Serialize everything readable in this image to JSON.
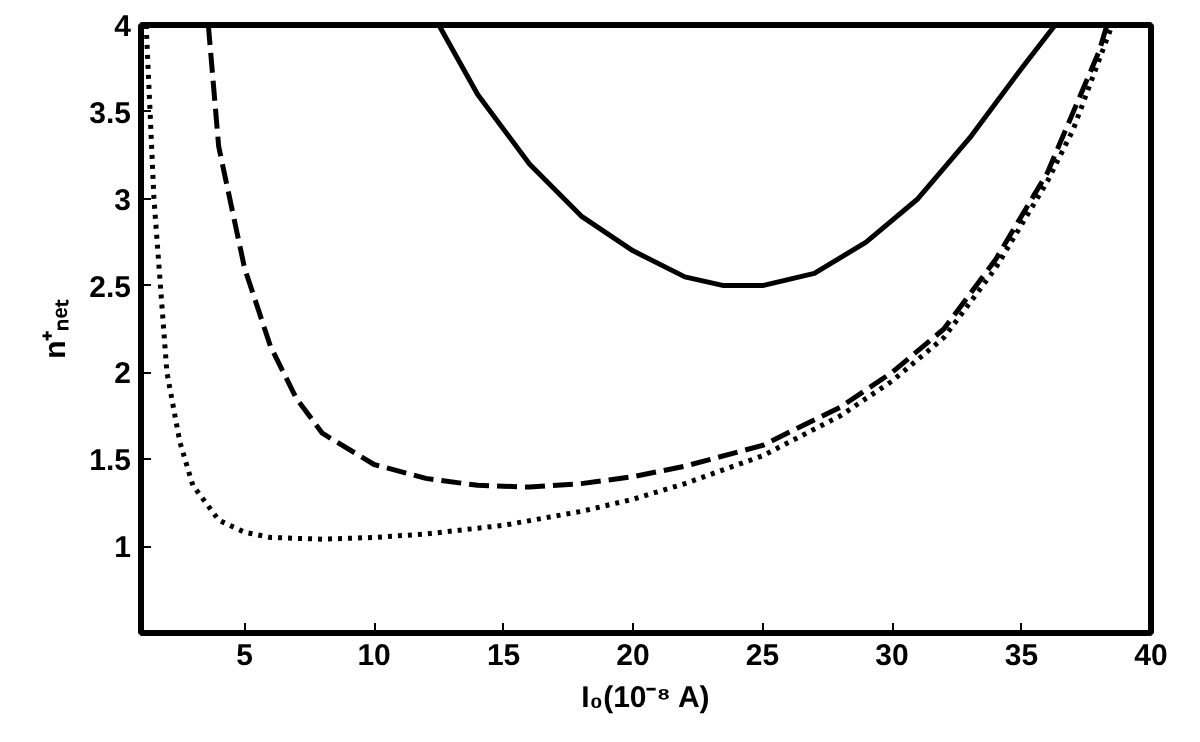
{
  "chart_data": {
    "type": "line",
    "xlabel": "I₀(10⁻⁸ A)",
    "ylabel": "n⁺ₙₑₜ",
    "xlim": [
      1,
      40
    ],
    "ylim": [
      0.5,
      4
    ],
    "xticks": [
      5,
      10,
      15,
      20,
      25,
      30,
      35,
      40
    ],
    "yticks": [
      1,
      1.5,
      2,
      2.5,
      3,
      3.5,
      4
    ],
    "marker": "none",
    "series": [
      {
        "color": "#000000",
        "line_style": "solid",
        "x": [
          12.5,
          14,
          16,
          18,
          20,
          22,
          23.5,
          25,
          27,
          29,
          31,
          33,
          35,
          36.3
        ],
        "values": [
          4,
          3.6,
          3.2,
          2.9,
          2.7,
          2.55,
          2.5,
          2.5,
          2.57,
          2.75,
          3.0,
          3.35,
          3.75,
          4
        ]
      },
      {
        "color": "#000000",
        "line_style": "dashed",
        "x": [
          3.6,
          4,
          5,
          6,
          7,
          8,
          10,
          12,
          14,
          16,
          18,
          20,
          22,
          25,
          28,
          30,
          32,
          34,
          36,
          37,
          38,
          38.3
        ],
        "values": [
          4,
          3.3,
          2.6,
          2.15,
          1.85,
          1.65,
          1.47,
          1.39,
          1.35,
          1.34,
          1.36,
          1.4,
          1.46,
          1.58,
          1.8,
          2.0,
          2.25,
          2.65,
          3.15,
          3.5,
          3.85,
          4
        ]
      },
      {
        "color": "#000000",
        "line_style": "dotted",
        "x": [
          1.2,
          1.5,
          2,
          2.5,
          3,
          4,
          5,
          6,
          8,
          10,
          12,
          15,
          18,
          20,
          22,
          25,
          28,
          30,
          32,
          34,
          36,
          37,
          38,
          38.5
        ],
        "values": [
          4,
          3.0,
          2.0,
          1.6,
          1.35,
          1.15,
          1.08,
          1.05,
          1.04,
          1.05,
          1.07,
          1.12,
          1.2,
          1.27,
          1.36,
          1.52,
          1.75,
          1.95,
          2.2,
          2.6,
          3.1,
          3.4,
          3.8,
          4.0
        ]
      }
    ]
  }
}
